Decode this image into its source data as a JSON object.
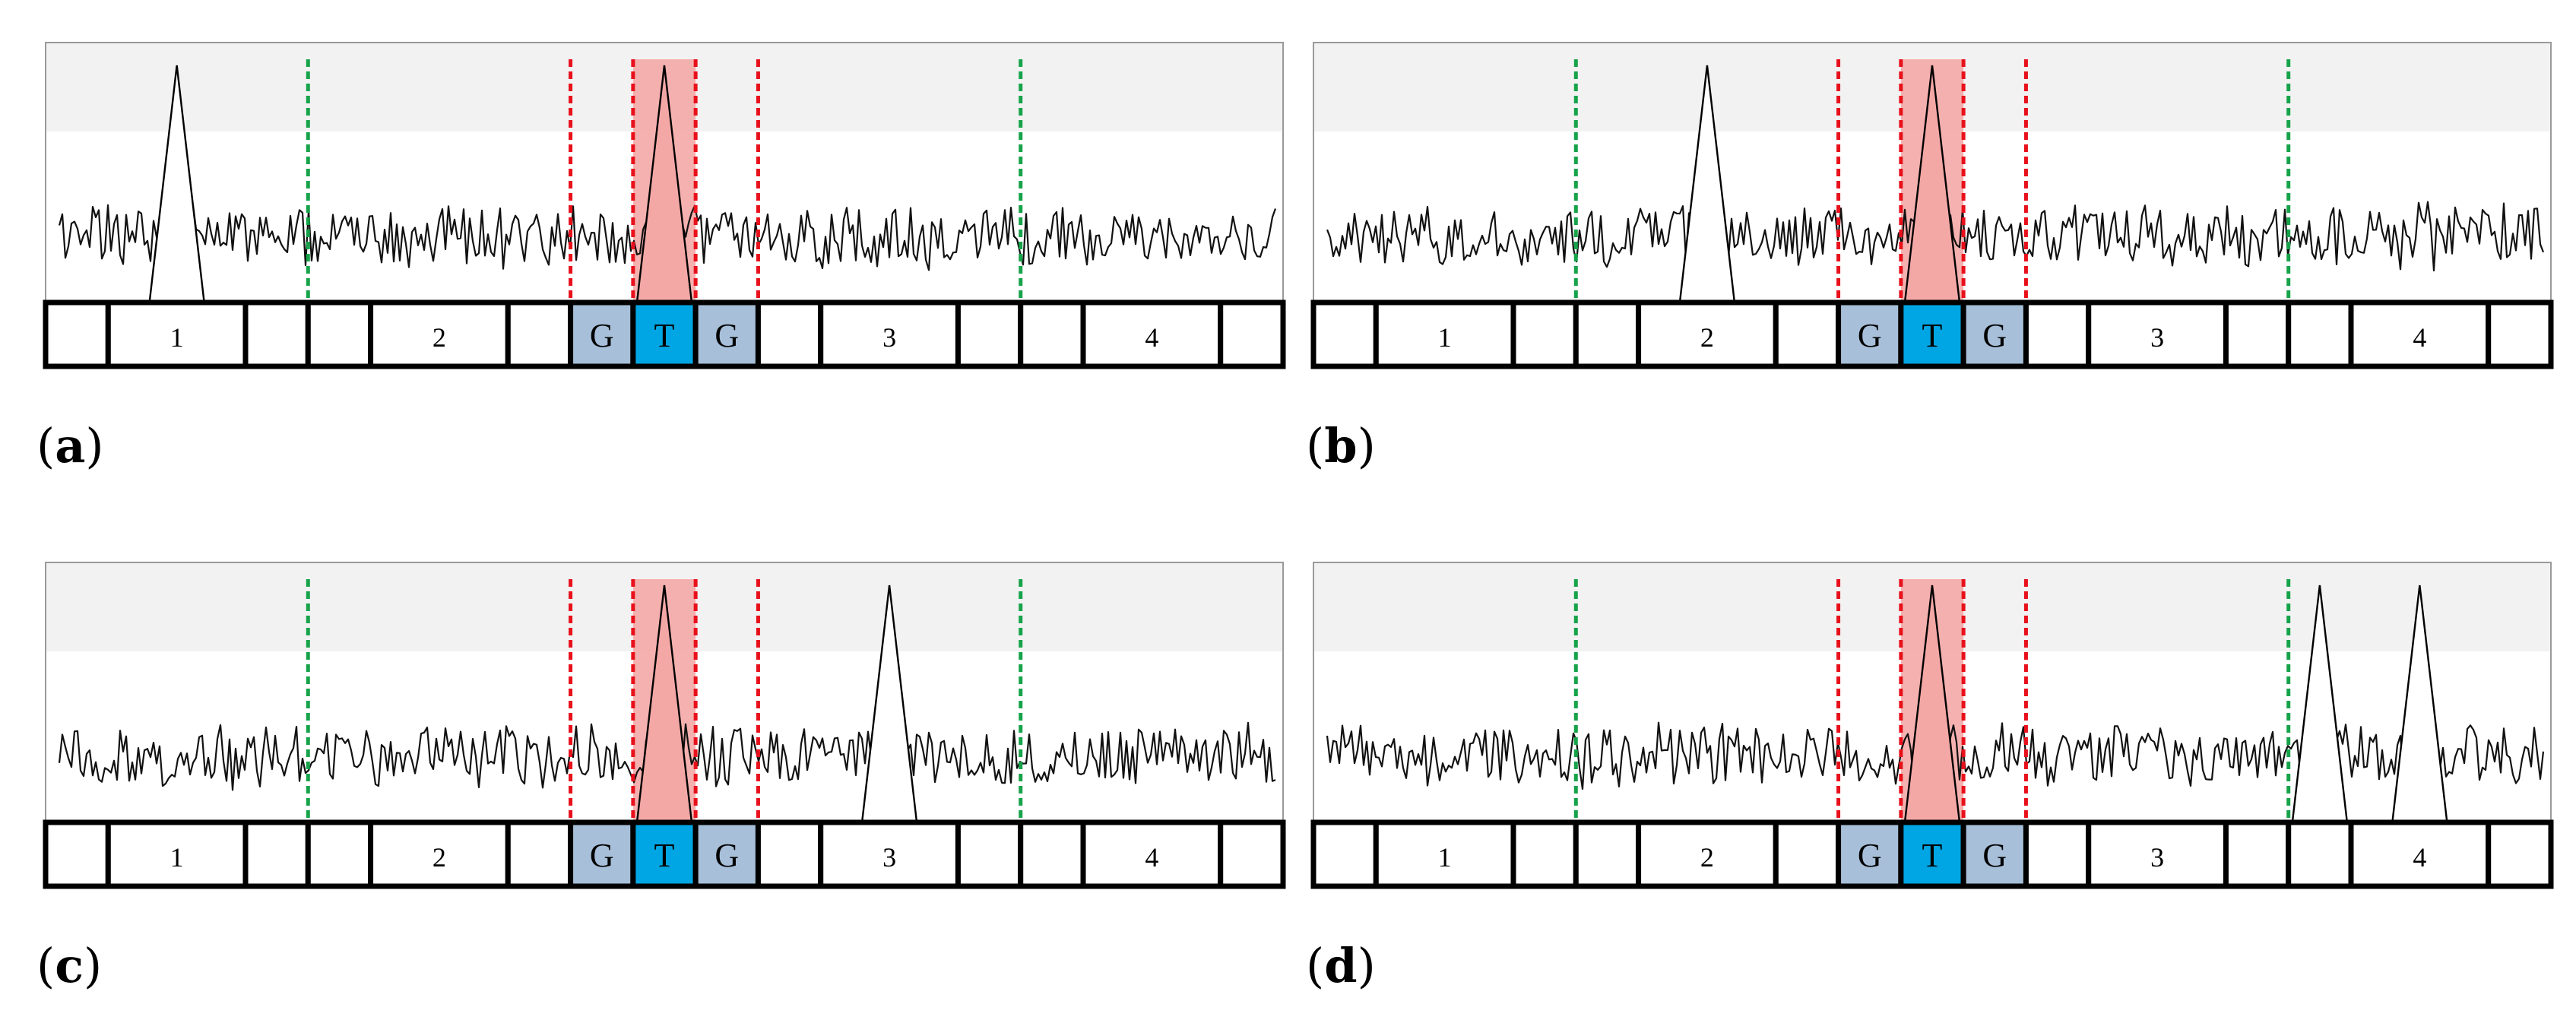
{
  "panels": [
    {
      "label": "a",
      "boxes": [
        "",
        "1",
        "",
        "",
        "2",
        "",
        "G",
        "T",
        "G",
        "",
        "3",
        "",
        "",
        "4",
        ""
      ],
      "peaks": [
        1
      ],
      "seed": 11
    },
    {
      "label": "b",
      "boxes": [
        "",
        "1",
        "",
        "",
        "2",
        "",
        "G",
        "T",
        "G",
        "",
        "3",
        "",
        "",
        "4",
        ""
      ],
      "peaks": [
        4
      ],
      "seed": 23
    },
    {
      "label": "c",
      "boxes": [
        "",
        "1",
        "",
        "",
        "2",
        "",
        "G",
        "T",
        "G",
        "",
        "3",
        "",
        "",
        "4",
        ""
      ],
      "peaks": [
        10
      ],
      "seed": 37
    },
    {
      "label": "d",
      "boxes": [
        "",
        "1",
        "",
        "",
        "2",
        "",
        "G",
        "T",
        "G",
        "",
        "3",
        "",
        "",
        "4",
        ""
      ],
      "peaks": [
        12,
        13
      ],
      "seed": 53
    }
  ],
  "target_box": 7,
  "flank_boxes": [
    6,
    8
  ],
  "colors": {
    "target_fill": "#00a6e3",
    "flank_fill": "#a7bfd9",
    "highlight": "#f4a8a6",
    "red_line": "#e8101b",
    "green_line": "#16a34a",
    "top_band": "#f2f2f2",
    "trace": "#111111"
  }
}
